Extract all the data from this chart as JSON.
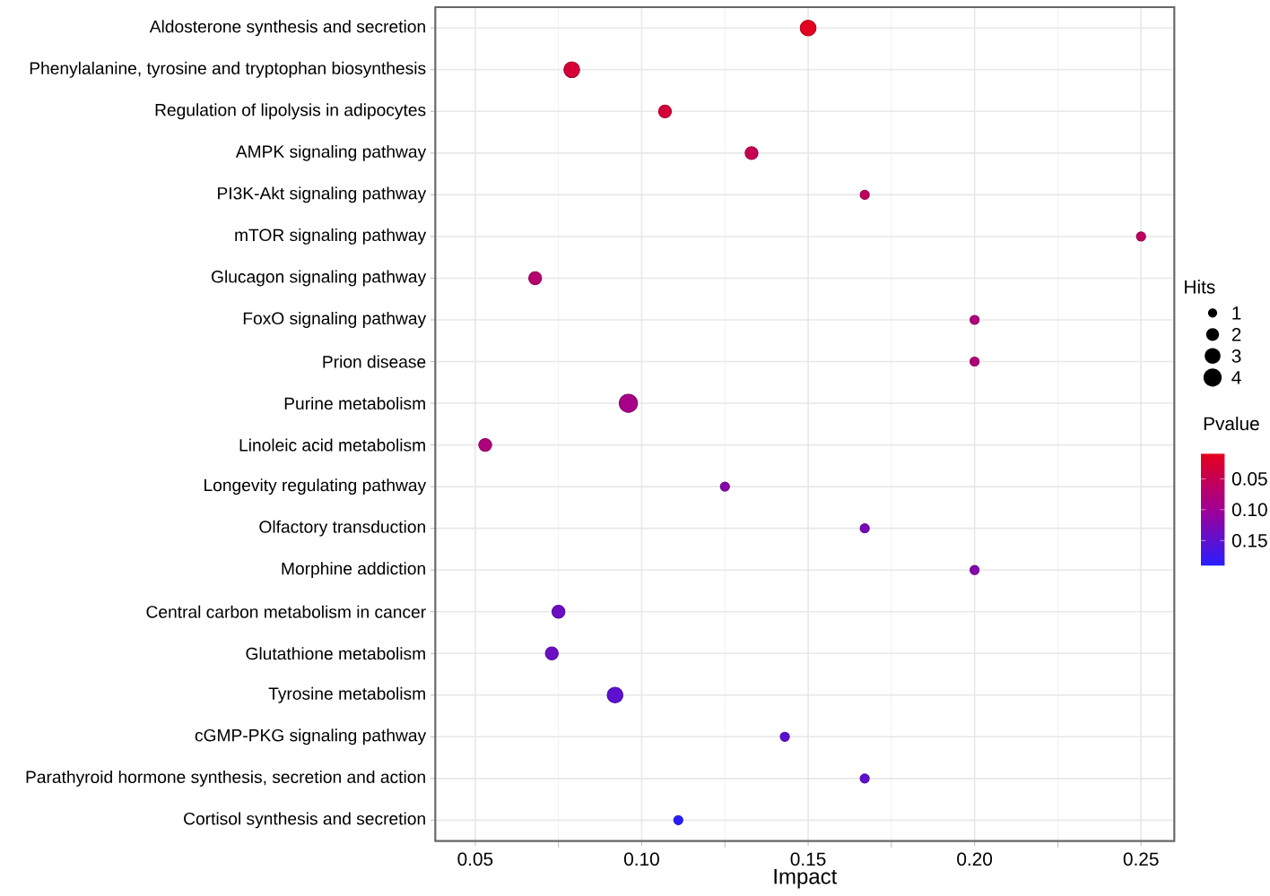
{
  "chart_data": {
    "type": "bubble",
    "orientation": "horizontal",
    "xlabel": "Impact",
    "legend_title": "Hits",
    "clabel": "Pvalue",
    "categories": [
      "Aldosterone synthesis and secretion",
      "Phenylalanine, tyrosine and tryptophan biosynthesis",
      "Regulation of lipolysis in adipocytes",
      "AMPK signaling pathway",
      "PI3K-Akt signaling pathway",
      "mTOR signaling pathway",
      "Glucagon signaling pathway",
      "FoxO signaling pathway",
      "Prion disease",
      "Purine metabolism",
      "Linoleic acid metabolism",
      "Longevity regulating pathway",
      "Olfactory transduction",
      "Morphine addiction",
      "Central carbon metabolism in cancer",
      "Glutathione metabolism",
      "Tyrosine metabolism",
      "cGMP-PKG signaling pathway",
      "Parathyroid hormone synthesis, secretion and action",
      "Cortisol synthesis and secretion"
    ],
    "values": [
      0.15,
      0.079,
      0.107,
      0.133,
      0.167,
      0.25,
      0.068,
      0.2,
      0.2,
      0.096,
      0.053,
      0.125,
      0.167,
      0.2,
      0.075,
      0.073,
      0.092,
      0.143,
      0.167,
      0.111
    ],
    "sizes": [
      3,
      3,
      2,
      2,
      1,
      1,
      2,
      1,
      1,
      4,
      2,
      1,
      1,
      1,
      2,
      2,
      3,
      1,
      1,
      1
    ],
    "cvalues": [
      0.012,
      0.03,
      0.03,
      0.05,
      0.06,
      0.06,
      0.07,
      0.08,
      0.08,
      0.09,
      0.08,
      0.12,
      0.13,
      0.12,
      0.14,
      0.14,
      0.15,
      0.15,
      0.15,
      0.19
    ],
    "size_legend": [
      1,
      2,
      3,
      4
    ],
    "clim": [
      0.009,
      0.191
    ],
    "cticks": [
      0.05,
      {
        "value": 0.1,
        "label": "0.10"
      },
      0.15
    ],
    "xlim": [
      0.038,
      0.26
    ],
    "xticks": [
      0.05,
      {
        "value": 0.1,
        "label": "0.10"
      },
      0.15,
      {
        "value": 0.2,
        "label": "0.20"
      },
      0.25
    ],
    "grid": true,
    "marker": "circle"
  }
}
